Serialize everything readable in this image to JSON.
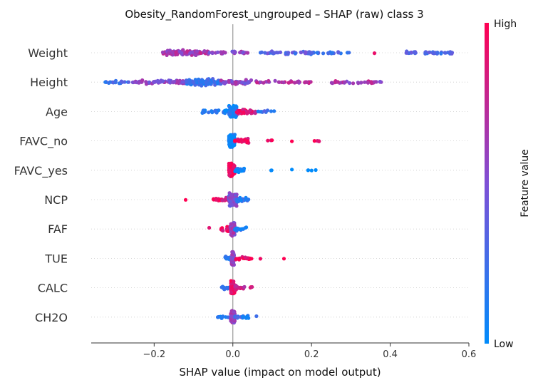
{
  "chart_data": {
    "type": "scatter",
    "subtype": "shap-beeswarm",
    "title": "Obesity_RandomForest_ungrouped – SHAP (raw) class 3",
    "xlabel": "SHAP value (impact on model output)",
    "xlim": [
      -0.36,
      0.6
    ],
    "xticks": [
      {
        "value": -0.2,
        "label": "−0.2"
      },
      {
        "value": 0.0,
        "label": "0.0"
      },
      {
        "value": 0.2,
        "label": "0.2"
      },
      {
        "value": 0.4,
        "label": "0.4"
      },
      {
        "value": 0.6,
        "label": "0.6"
      }
    ],
    "features": [
      {
        "name": "Weight",
        "clusters": [
          [
            -0.18,
            -0.06,
            120,
            0.65
          ],
          [
            -0.06,
            0.05,
            25,
            0.55
          ],
          [
            0.07,
            0.2,
            40,
            0.35
          ],
          [
            0.2,
            0.3,
            20,
            0.3
          ],
          [
            0.36,
            0.36,
            1,
            0.9
          ],
          [
            0.44,
            0.56,
            40,
            0.3
          ]
        ]
      },
      {
        "name": "Height",
        "clusters": [
          [
            -0.33,
            -0.26,
            20,
            0.25
          ],
          [
            -0.26,
            -0.1,
            90,
            0.55
          ],
          [
            -0.12,
            -0.03,
            130,
            0.2
          ],
          [
            -0.03,
            0.05,
            60,
            0.55
          ],
          [
            0.05,
            0.2,
            35,
            0.7
          ],
          [
            0.25,
            0.38,
            35,
            0.65
          ]
        ]
      },
      {
        "name": "Age",
        "clusters": [
          [
            -0.08,
            -0.01,
            35,
            0.1
          ],
          [
            -0.01,
            0.01,
            140,
            0.1
          ],
          [
            0.01,
            0.06,
            45,
            0.85
          ],
          [
            0.06,
            0.11,
            10,
            0.2
          ]
        ]
      },
      {
        "name": "FAVC_no",
        "clusters": [
          [
            -0.01,
            0.005,
            180,
            0.05
          ],
          [
            0.005,
            0.04,
            30,
            0.95
          ],
          [
            0.08,
            0.1,
            3,
            0.95
          ],
          [
            0.15,
            0.15,
            1,
            0.95
          ],
          [
            0.2,
            0.22,
            4,
            0.95
          ]
        ]
      },
      {
        "name": "FAVC_yes",
        "clusters": [
          [
            -0.01,
            0.005,
            180,
            0.95
          ],
          [
            0.005,
            0.03,
            25,
            0.05
          ],
          [
            0.09,
            0.1,
            2,
            0.05
          ],
          [
            0.15,
            0.15,
            1,
            0.05
          ],
          [
            0.19,
            0.23,
            4,
            0.05
          ]
        ]
      },
      {
        "name": "NCP",
        "clusters": [
          [
            -0.12,
            -0.12,
            1,
            0.95
          ],
          [
            -0.05,
            -0.01,
            25,
            0.9
          ],
          [
            -0.01,
            0.01,
            160,
            0.5
          ],
          [
            0.01,
            0.04,
            25,
            0.2
          ]
        ]
      },
      {
        "name": "FAF",
        "clusters": [
          [
            -0.06,
            -0.06,
            1,
            0.95
          ],
          [
            -0.03,
            -0.005,
            20,
            0.9
          ],
          [
            -0.005,
            0.005,
            170,
            0.6
          ],
          [
            0.005,
            0.035,
            20,
            0.15
          ]
        ]
      },
      {
        "name": "TUE",
        "clusters": [
          [
            -0.02,
            0.005,
            25,
            0.2
          ],
          [
            -0.003,
            0.003,
            160,
            0.55
          ],
          [
            0.005,
            0.05,
            20,
            0.95
          ],
          [
            0.07,
            0.07,
            1,
            0.95
          ],
          [
            0.13,
            0.13,
            1,
            0.95
          ]
        ]
      },
      {
        "name": "CALC",
        "clusters": [
          [
            -0.03,
            -0.005,
            10,
            0.1
          ],
          [
            -0.005,
            0.005,
            170,
            0.95
          ],
          [
            0.005,
            0.03,
            15,
            0.8
          ],
          [
            0.04,
            0.055,
            3,
            0.95
          ]
        ]
      },
      {
        "name": "CH2O",
        "clusters": [
          [
            -0.04,
            -0.005,
            12,
            0.1
          ],
          [
            -0.005,
            0.005,
            170,
            0.6
          ],
          [
            0.005,
            0.04,
            20,
            0.2
          ],
          [
            0.06,
            0.06,
            1,
            0.1
          ]
        ]
      }
    ],
    "colorbar": {
      "label": "Feature value",
      "high": "High",
      "low": "Low",
      "low_color": "#008bfb",
      "high_color": "#ff0052"
    }
  }
}
